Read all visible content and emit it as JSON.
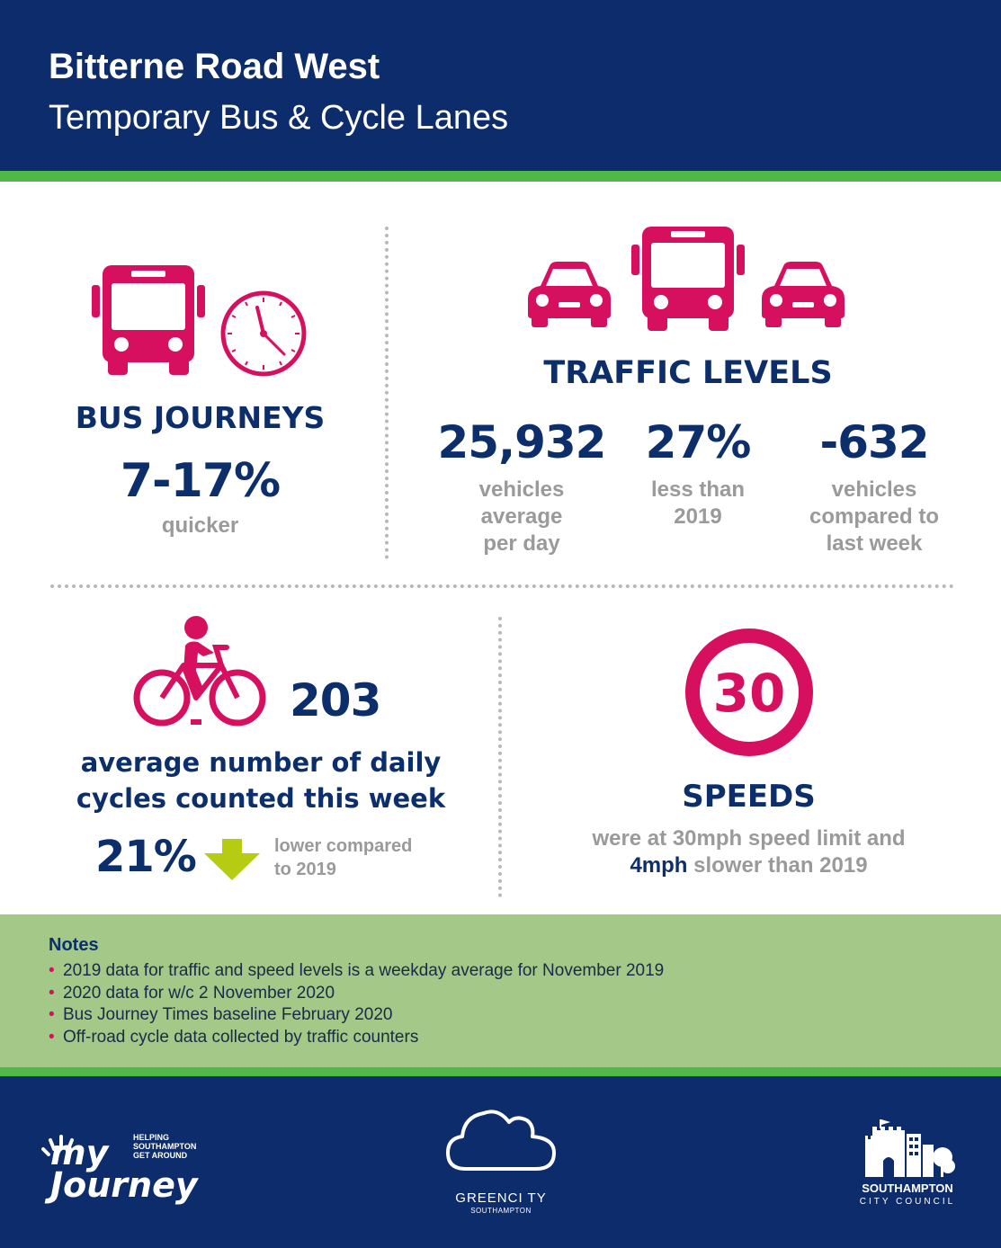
{
  "header": {
    "title": "Bitterne Road West",
    "subtitle": "Temporary Bus & Cycle Lanes"
  },
  "bus_journeys": {
    "icons": [
      "bus-icon",
      "clock-icon"
    ],
    "heading": "BUS JOURNEYS",
    "value": "7-17%",
    "caption": "quicker"
  },
  "traffic_levels": {
    "icons": [
      "car-icon",
      "bus-icon",
      "car-icon"
    ],
    "heading": "TRAFFIC LEVELS",
    "stats": [
      {
        "value": "25,932",
        "caption_lines": [
          "vehicles",
          "average",
          "per day"
        ]
      },
      {
        "value": "27%",
        "caption_lines": [
          "less than",
          "2019"
        ]
      },
      {
        "value": "-632",
        "caption_lines": [
          "vehicles",
          "compared to",
          "last week"
        ]
      }
    ]
  },
  "cycles": {
    "icon": "cyclist-icon",
    "value": "203",
    "caption_lines": [
      "average number of daily",
      "cycles counted this week"
    ],
    "change_value": "21%",
    "change_icon": "down-arrow-icon",
    "change_caption_lines": [
      "lower compared",
      "to 2019"
    ]
  },
  "speeds": {
    "sign_value": "30",
    "heading": "SPEEDS",
    "line1": "were at 30mph speed limit and",
    "line2_bold": "4mph",
    "line2_rest": " slower than 2019"
  },
  "notes": {
    "title": "Notes",
    "items": [
      "2019 data for traffic and speed levels is a weekday average for November 2019",
      "2020 data for w/c 2 November 2020",
      "Bus Journey Times baseline February 2020",
      "Off-road cycle data collected by traffic counters"
    ]
  },
  "footer": {
    "myjourney": {
      "logo_text": "my Journey",
      "tagline_lines": [
        "HELPING",
        "SOUTHAMPTON",
        "GET AROUND"
      ]
    },
    "greencity": {
      "name": "GREENCI TY",
      "sub": "SOUTHAMPTON"
    },
    "council": {
      "name": "SOUTHAMPTON",
      "sub": "CITY COUNCIL"
    }
  },
  "colors": {
    "navy": "#0d2c6c",
    "green": "#4fb848",
    "pink": "#d6105f",
    "lime_arrow": "#b5cc12",
    "grey_text": "#9a9a9a",
    "notes_bg": "#a3c888"
  }
}
